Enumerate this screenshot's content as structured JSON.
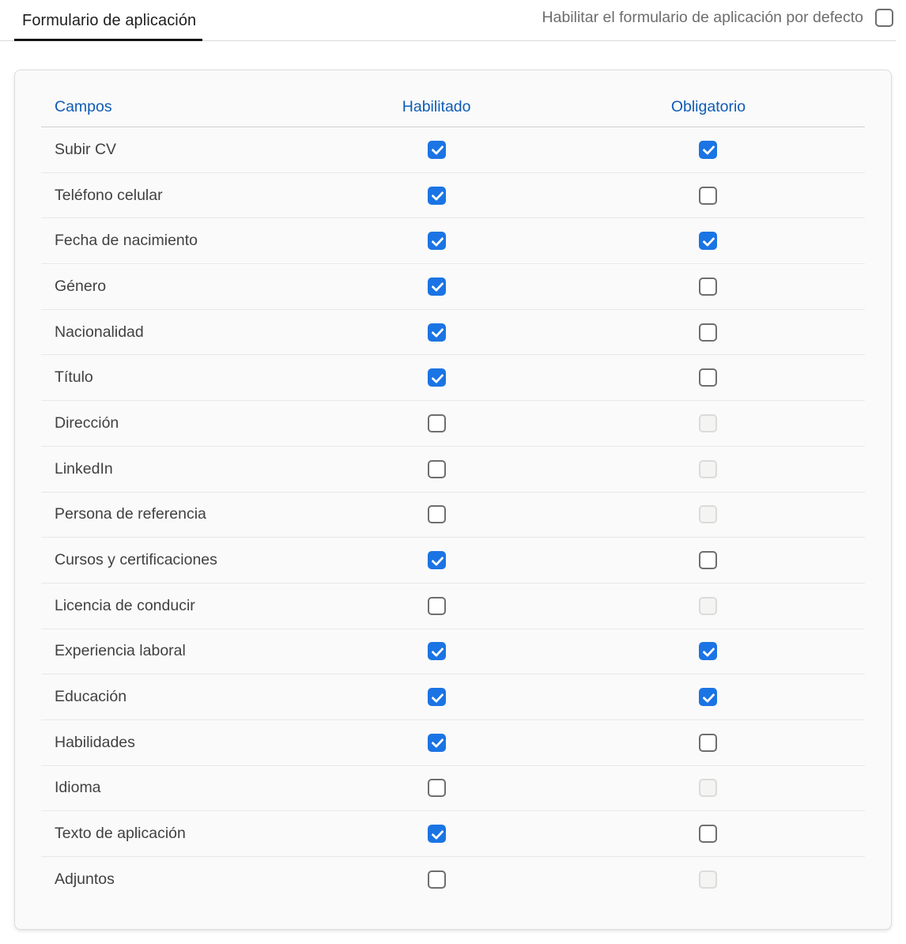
{
  "header": {
    "tab_label": "Formulario de aplicación",
    "toggle_label": "Habilitar el formulario de aplicación por defecto",
    "toggle_checked": false
  },
  "table": {
    "columns": [
      "Campos",
      "Habilitado",
      "Obligatorio"
    ],
    "rows": [
      {
        "label": "Subir CV",
        "habilitado": "checked",
        "obligatorio": "checked"
      },
      {
        "label": "Teléfono celular",
        "habilitado": "checked",
        "obligatorio": "unchecked"
      },
      {
        "label": "Fecha de nacimiento",
        "habilitado": "checked",
        "obligatorio": "checked"
      },
      {
        "label": "Género",
        "habilitado": "checked",
        "obligatorio": "unchecked"
      },
      {
        "label": "Nacionalidad",
        "habilitado": "checked",
        "obligatorio": "unchecked"
      },
      {
        "label": "Título",
        "habilitado": "checked",
        "obligatorio": "unchecked"
      },
      {
        "label": "Dirección",
        "habilitado": "unchecked",
        "obligatorio": "disabled"
      },
      {
        "label": "LinkedIn",
        "habilitado": "unchecked",
        "obligatorio": "disabled"
      },
      {
        "label": "Persona de referencia",
        "habilitado": "unchecked",
        "obligatorio": "disabled"
      },
      {
        "label": "Cursos y certificaciones",
        "habilitado": "checked",
        "obligatorio": "unchecked"
      },
      {
        "label": "Licencia de conducir",
        "habilitado": "unchecked",
        "obligatorio": "disabled"
      },
      {
        "label": "Experiencia laboral",
        "habilitado": "checked",
        "obligatorio": "checked"
      },
      {
        "label": "Educación",
        "habilitado": "checked",
        "obligatorio": "checked"
      },
      {
        "label": "Habilidades",
        "habilitado": "checked",
        "obligatorio": "unchecked"
      },
      {
        "label": "Idioma",
        "habilitado": "unchecked",
        "obligatorio": "disabled"
      },
      {
        "label": "Texto de aplicación",
        "habilitado": "checked",
        "obligatorio": "unchecked"
      },
      {
        "label": "Adjuntos",
        "habilitado": "unchecked",
        "obligatorio": "disabled"
      }
    ]
  },
  "colors": {
    "accent_blue": "#1b74e4",
    "header_blue": "#0f5bb5",
    "checkbox_border": "#6e6e6e",
    "disabled_checkbox_border": "#dbdbda",
    "tab_underline": "#141414"
  }
}
